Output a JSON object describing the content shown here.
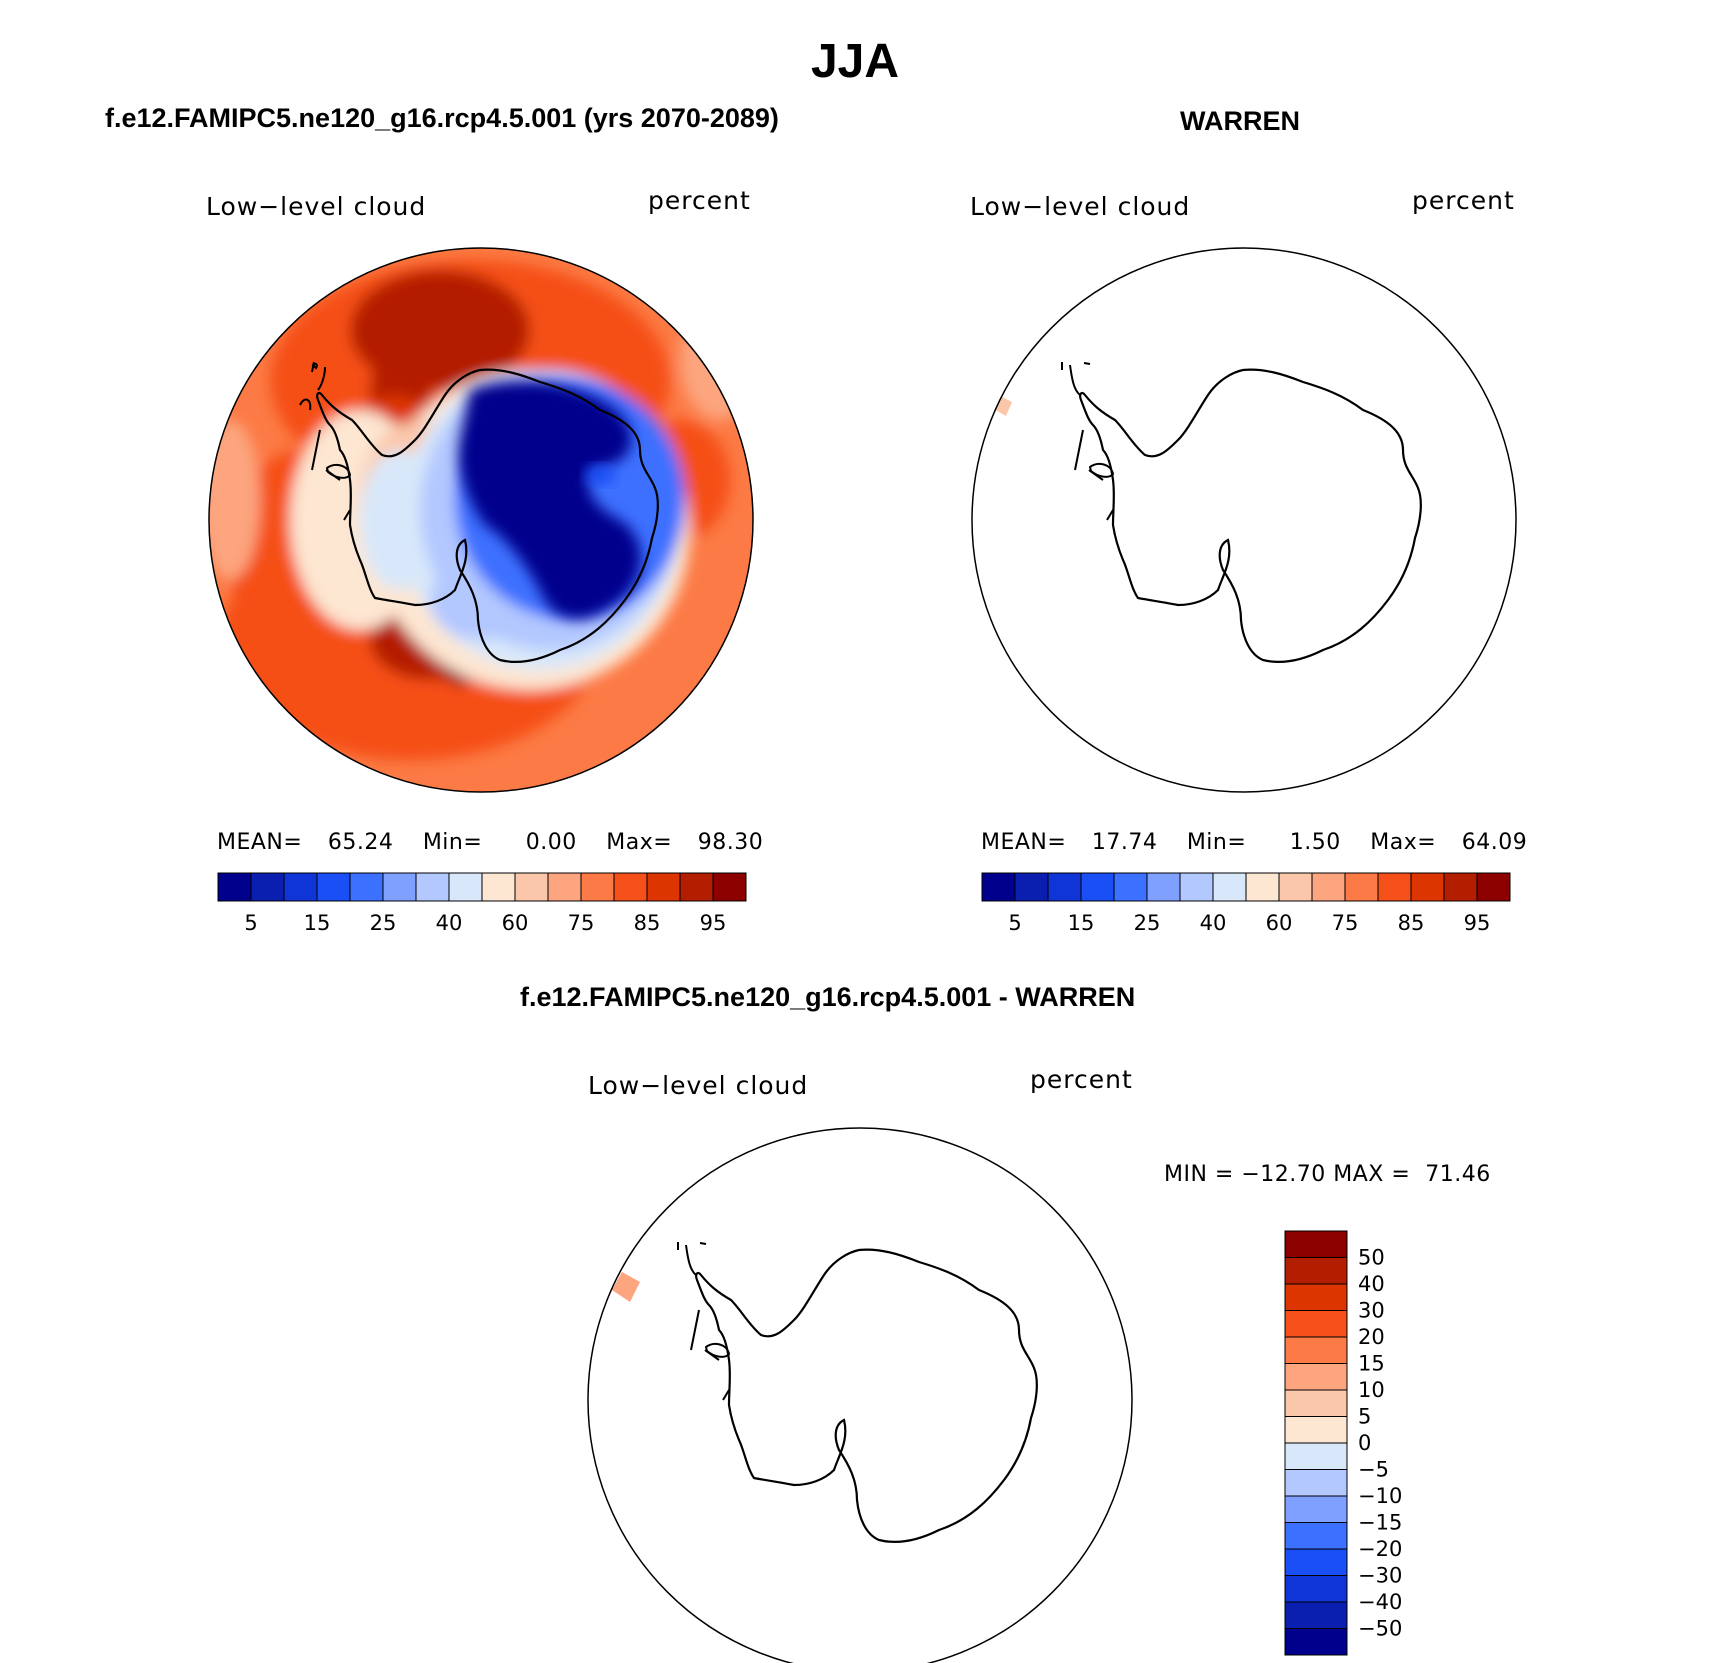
{
  "title": "JJA",
  "panels": [
    {
      "id": "model",
      "title": "f.e12.FAMIPC5.ne120_g16.rcp4.5.001 (yrs 2070-2089)",
      "var_label": "Low−level cloud",
      "unit_label": "percent",
      "stats": {
        "mean_label": "MEAN=",
        "mean": "65.24",
        "min_label": "Min=",
        "min": "0.00",
        "max_label": "Max=",
        "max": "98.30"
      }
    },
    {
      "id": "obs",
      "title": "WARREN",
      "var_label": "Low−level cloud",
      "unit_label": "percent",
      "stats": {
        "mean_label": "MEAN=",
        "mean": "17.74",
        "min_label": "Min=",
        "min": "1.50",
        "max_label": "Max=",
        "max": "64.09"
      }
    },
    {
      "id": "diff",
      "title": "f.e12.FAMIPC5.ne120_g16.rcp4.5.001 - WARREN",
      "var_label": "Low−level cloud",
      "unit_label": "percent",
      "stats_text": "MIN = −12.70 MAX =  71.46"
    }
  ],
  "chart_data": [
    {
      "type": "heatmap",
      "projection": "south-polar-stereographic",
      "region": "Antarctica",
      "variable": "Low−level cloud",
      "units": "percent",
      "mean": 65.24,
      "min": 0.0,
      "max": 98.3,
      "colorbar": {
        "orientation": "horizontal",
        "ticks": [
          "5",
          "15",
          "25",
          "40",
          "60",
          "75",
          "85",
          "95"
        ],
        "colors": [
          "#00008c",
          "#0a1fb0",
          "#0f35d6",
          "#1a4ff5",
          "#3c70ff",
          "#7fa0ff",
          "#b3c8ff",
          "#d8e8fa",
          "#fde6d2",
          "#fbc7aa",
          "#fca57f",
          "#fc7a45",
          "#f55019",
          "#dc3500",
          "#b41e00",
          "#8c0000"
        ]
      },
      "description_fields": {
        "ocean": "75-95",
        "interior": "5",
        "coast": "40-60"
      }
    },
    {
      "type": "heatmap",
      "projection": "south-polar-stereographic",
      "region": "Antarctica",
      "variable": "Low−level cloud",
      "units": "percent",
      "mean": 17.74,
      "min": 1.5,
      "max": 64.09,
      "colorbar": {
        "orientation": "horizontal",
        "ticks": [
          "5",
          "15",
          "25",
          "40",
          "60",
          "75",
          "85",
          "95"
        ],
        "colors": [
          "#00008c",
          "#0a1fb0",
          "#0f35d6",
          "#1a4ff5",
          "#3c70ff",
          "#7fa0ff",
          "#b3c8ff",
          "#d8e8fa",
          "#fde6d2",
          "#fbc7aa",
          "#fca57f",
          "#fc7a45",
          "#f55019",
          "#dc3500",
          "#b41e00",
          "#8c0000"
        ]
      }
    },
    {
      "type": "heatmap",
      "projection": "south-polar-stereographic",
      "region": "Antarctica",
      "variable": "Low−level cloud",
      "units": "percent",
      "min": -12.7,
      "max": 71.46,
      "colorbar": {
        "orientation": "vertical",
        "ticks": [
          "50",
          "40",
          "30",
          "20",
          "15",
          "10",
          "5",
          "0",
          "−5",
          "−10",
          "−15",
          "−20",
          "−30",
          "−40",
          "−50"
        ],
        "colors": [
          "#8c0000",
          "#b41e00",
          "#dc3500",
          "#f55019",
          "#fc7a45",
          "#fca57f",
          "#fbc7aa",
          "#fde6d2",
          "#d8e8fa",
          "#b3c8ff",
          "#7fa0ff",
          "#3c70ff",
          "#1a4ff5",
          "#0f35d6",
          "#0a1fb0",
          "#00008c"
        ]
      }
    }
  ]
}
